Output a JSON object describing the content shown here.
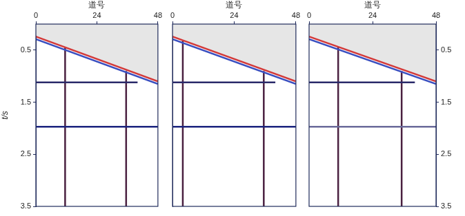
{
  "chart_data": [
    {
      "type": "line",
      "x_label": "道号",
      "y_label": "t/s",
      "xlim": [
        0,
        48
      ],
      "xticks": [
        0,
        24,
        48
      ],
      "ylim": [
        0,
        3.5
      ],
      "yticks": [
        0.5,
        1.5,
        2.5,
        3.5
      ],
      "grid": false,
      "series": [
        {
          "type": "area",
          "color": "#e6e6e6",
          "x": [
            0,
            48
          ],
          "values": [
            0.22,
            1.12
          ]
        },
        {
          "type": "line",
          "color": "#d23a3a",
          "x": [
            0,
            48
          ],
          "values": [
            0.24,
            1.1
          ]
        },
        {
          "type": "line",
          "color": "#3a4fc0",
          "x": [
            0,
            48
          ],
          "values": [
            0.29,
            1.15
          ]
        },
        {
          "type": "line",
          "color": "#2a2a6a",
          "x": [
            0,
            40
          ],
          "values": [
            1.12,
            1.12
          ]
        },
        {
          "type": "line",
          "color": "#1a237e",
          "x": [
            0,
            48
          ],
          "values": [
            1.97,
            1.97
          ]
        },
        {
          "type": "line",
          "color": "#4a2040",
          "x": [
            11.5,
            11.5
          ],
          "values": [
            0.45,
            3.5
          ]
        },
        {
          "type": "line",
          "color": "#4a2040",
          "x": [
            35.5,
            35.5
          ],
          "values": [
            0.9,
            3.5
          ]
        }
      ]
    },
    {
      "type": "line",
      "x_label": "道号",
      "xlim": [
        0,
        48
      ],
      "xticks": [
        0,
        24,
        48
      ],
      "ylim": [
        0,
        3.5
      ],
      "yticks": [
        0.5,
        1.5,
        2.5,
        3.5
      ],
      "grid": false,
      "tick_labels": "x",
      "series": [
        {
          "type": "area",
          "color": "#e6e6e6",
          "x": [
            0,
            48
          ],
          "values": [
            0.22,
            1.12
          ]
        },
        {
          "type": "line",
          "color": "#d23a3a",
          "x": [
            0,
            48
          ],
          "values": [
            0.24,
            1.1
          ]
        },
        {
          "type": "line",
          "color": "#3a4fc0",
          "x": [
            0,
            48
          ],
          "values": [
            0.29,
            1.15
          ]
        },
        {
          "type": "line",
          "color": "#2a2a6a",
          "x": [
            0,
            40
          ],
          "values": [
            1.12,
            1.12
          ]
        },
        {
          "type": "line",
          "color": "#1a237e",
          "x": [
            0,
            48
          ],
          "values": [
            1.97,
            1.97
          ]
        },
        {
          "type": "line",
          "color": "#4a2040",
          "x": [
            4,
            4
          ],
          "values": [
            0.32,
            3.5
          ]
        },
        {
          "type": "line",
          "color": "#4a2040",
          "x": [
            35.5,
            35.5
          ],
          "values": [
            0.9,
            3.5
          ]
        }
      ]
    },
    {
      "type": "line",
      "x_label": "道号",
      "xlim": [
        0,
        48
      ],
      "xticks": [
        0,
        24,
        48
      ],
      "ylim": [
        0,
        3.5
      ],
      "yticks": [
        0.5,
        1.5,
        2.5,
        3.5
      ],
      "grid": false,
      "series": [
        {
          "type": "area",
          "color": "#e6e6e6",
          "x": [
            0,
            48
          ],
          "values": [
            0.22,
            1.12
          ]
        },
        {
          "type": "line",
          "color": "#d23a3a",
          "x": [
            0,
            48
          ],
          "values": [
            0.24,
            1.1
          ]
        },
        {
          "type": "line",
          "color": "#3a4fc0",
          "x": [
            0,
            48
          ],
          "values": [
            0.29,
            1.15
          ]
        },
        {
          "type": "line",
          "color": "#2a2a6a",
          "x": [
            0,
            40
          ],
          "values": [
            1.12,
            1.12
          ]
        },
        {
          "type": "line",
          "color": "#6a6a9a",
          "x": [
            0,
            48
          ],
          "values": [
            1.97,
            1.97
          ]
        },
        {
          "type": "line",
          "color": "#4a2040",
          "x": [
            11,
            11
          ],
          "values": [
            0.45,
            3.5
          ]
        },
        {
          "type": "line",
          "color": "#4a2040",
          "x": [
            35,
            35
          ],
          "values": [
            0.9,
            3.5
          ]
        }
      ]
    }
  ]
}
